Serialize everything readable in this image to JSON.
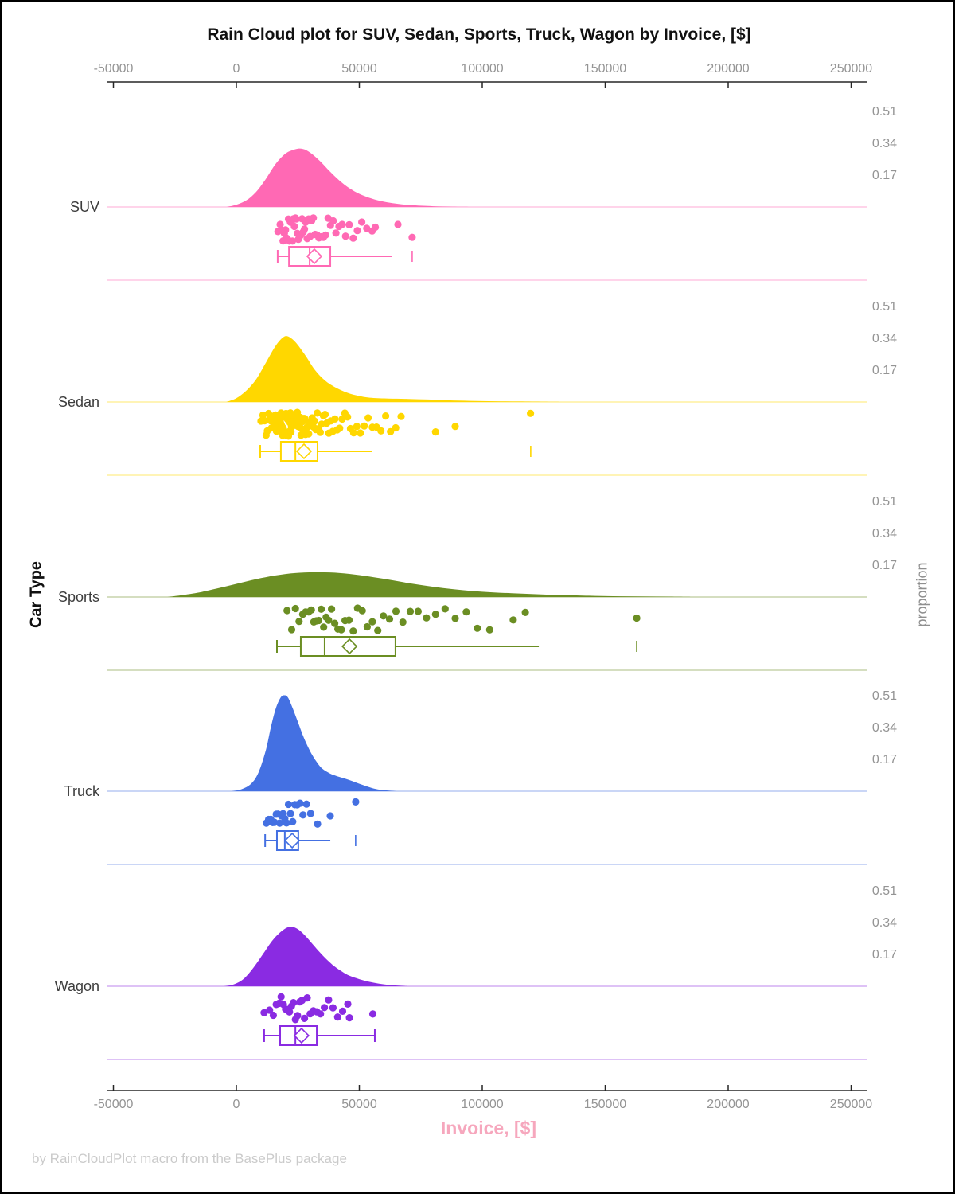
{
  "chart_data": {
    "type": "raincloud",
    "title": "Rain Cloud plot for SUV, Sedan, Sports, Truck, Wagon by Invoice, [$]",
    "xlabel": "Invoice, [$]",
    "ylabel_left": "Car Type",
    "ylabel_right": "proportion",
    "footer": "by RainCloudPlot macro from the BasePlus package",
    "x_axis": {
      "ticks": [
        -50000,
        0,
        50000,
        100000,
        150000,
        200000,
        250000
      ]
    },
    "proportion_ticks": [
      0.51,
      0.34,
      0.17
    ],
    "legend_position": "none",
    "grid": false,
    "groups": [
      {
        "name": "SUV",
        "color": "#FF69B4",
        "density": [
          [
            -4000,
            0
          ],
          [
            0,
            0.012
          ],
          [
            4000,
            0.035
          ],
          [
            8000,
            0.08
          ],
          [
            12000,
            0.15
          ],
          [
            16000,
            0.23
          ],
          [
            20000,
            0.285
          ],
          [
            24000,
            0.308
          ],
          [
            27000,
            0.31
          ],
          [
            30000,
            0.29
          ],
          [
            34000,
            0.245
          ],
          [
            38000,
            0.19
          ],
          [
            42000,
            0.14
          ],
          [
            46000,
            0.1
          ],
          [
            50000,
            0.07
          ],
          [
            55000,
            0.045
          ],
          [
            60000,
            0.028
          ],
          [
            66000,
            0.016
          ],
          [
            72000,
            0.009
          ],
          [
            80000,
            0.004
          ],
          [
            88000,
            0.001
          ],
          [
            95000,
            0
          ]
        ],
        "points": [
          16900,
          17800,
          18400,
          19000,
          19500,
          20000,
          20400,
          20800,
          21200,
          21600,
          22000,
          22400,
          22800,
          23200,
          23600,
          24000,
          24400,
          24800,
          25200,
          25700,
          26200,
          26700,
          27200,
          27700,
          28200,
          28800,
          29400,
          30000,
          30600,
          31300,
          32000,
          32800,
          33600,
          34500,
          35400,
          36300,
          37300,
          38300,
          39400,
          40500,
          41700,
          43000,
          44400,
          45900,
          47500,
          49200,
          51000,
          53000,
          55200,
          56500,
          65700,
          71500
        ],
        "box": {
          "whisker_low": 16800,
          "q1": 21400,
          "median": 29800,
          "mean": 31700,
          "q3": 38200,
          "whisker_high": 63100,
          "far": 71500,
          "right_cap": false
        }
      },
      {
        "name": "Sedan",
        "color": "#FFD700",
        "density": [
          [
            -4000,
            0
          ],
          [
            0,
            0.02
          ],
          [
            4000,
            0.06
          ],
          [
            8000,
            0.12
          ],
          [
            12000,
            0.21
          ],
          [
            16000,
            0.3
          ],
          [
            19000,
            0.345
          ],
          [
            21000,
            0.35
          ],
          [
            24000,
            0.32
          ],
          [
            28000,
            0.25
          ],
          [
            32000,
            0.17
          ],
          [
            36000,
            0.115
          ],
          [
            40000,
            0.08
          ],
          [
            45000,
            0.05
          ],
          [
            50000,
            0.032
          ],
          [
            55000,
            0.022
          ],
          [
            62000,
            0.018
          ],
          [
            70000,
            0.016
          ],
          [
            78000,
            0.013
          ],
          [
            86000,
            0.009
          ],
          [
            95000,
            0.006
          ],
          [
            105000,
            0.004
          ],
          [
            115000,
            0.0025
          ],
          [
            125000,
            0.001
          ],
          [
            132000,
            0
          ]
        ],
        "points": [
          10000,
          10800,
          11500,
          12100,
          12600,
          13100,
          13500,
          13900,
          14300,
          14700,
          15100,
          15400,
          15700,
          16000,
          16300,
          16600,
          16900,
          17200,
          17500,
          17800,
          18000,
          18200,
          18400,
          18600,
          18800,
          19000,
          19200,
          19400,
          19600,
          19800,
          20000,
          20200,
          20400,
          20600,
          20800,
          21000,
          21200,
          21400,
          21600,
          21800,
          22000,
          22200,
          22400,
          22600,
          22800,
          23000,
          23300,
          23600,
          23900,
          24200,
          24500,
          24800,
          25100,
          25400,
          25700,
          26000,
          26300,
          26600,
          27000,
          27400,
          27800,
          28200,
          28600,
          29000,
          29400,
          29800,
          30300,
          30800,
          31300,
          31800,
          32300,
          32900,
          33500,
          34100,
          34700,
          35400,
          36100,
          36800,
          37600,
          38400,
          39200,
          40100,
          41000,
          42000,
          43000,
          44100,
          45200,
          46400,
          47700,
          49000,
          50400,
          52000,
          53600,
          55300,
          57000,
          58800,
          60700,
          62700,
          64800,
          67000,
          81000,
          89000,
          119600
        ],
        "box": {
          "whisker_low": 9700,
          "q1": 18100,
          "median": 24000,
          "mean": 27500,
          "q3": 33000,
          "whisker_high": 55300,
          "far": 119700,
          "right_cap": false
        }
      },
      {
        "name": "Sports",
        "color": "#6B8E23",
        "density": [
          [
            -28000,
            0
          ],
          [
            -22000,
            0.01
          ],
          [
            -16000,
            0.022
          ],
          [
            -8000,
            0.045
          ],
          [
            0,
            0.07
          ],
          [
            8000,
            0.095
          ],
          [
            16000,
            0.115
          ],
          [
            24000,
            0.128
          ],
          [
            32000,
            0.132
          ],
          [
            40000,
            0.13
          ],
          [
            48000,
            0.12
          ],
          [
            56000,
            0.105
          ],
          [
            64000,
            0.088
          ],
          [
            72000,
            0.07
          ],
          [
            80000,
            0.055
          ],
          [
            88000,
            0.042
          ],
          [
            96000,
            0.032
          ],
          [
            104000,
            0.025
          ],
          [
            112000,
            0.02
          ],
          [
            120000,
            0.016
          ],
          [
            128000,
            0.012
          ],
          [
            136000,
            0.009
          ],
          [
            146000,
            0.006
          ],
          [
            156000,
            0.004
          ],
          [
            166000,
            0.0025
          ],
          [
            176000,
            0.0015
          ],
          [
            186000,
            0
          ]
        ],
        "points": [
          20600,
          22500,
          24000,
          25500,
          27000,
          28200,
          29400,
          30500,
          31500,
          32500,
          33500,
          34500,
          35500,
          36500,
          37500,
          38700,
          40000,
          41300,
          42700,
          44200,
          45800,
          47500,
          49300,
          51200,
          53200,
          55300,
          57500,
          59800,
          62300,
          64900,
          67700,
          70700,
          73900,
          77300,
          81000,
          84900,
          89000,
          93500,
          98000,
          103000,
          112600,
          117500,
          162800
        ],
        "box": {
          "whisker_low": 16500,
          "q1": 26200,
          "median": 35900,
          "mean": 46000,
          "q3": 64700,
          "whisker_high": 123000,
          "far": 162800,
          "right_cap": false
        }
      },
      {
        "name": "Truck",
        "color": "#4470E2",
        "density": [
          [
            -2000,
            0
          ],
          [
            2000,
            0.01
          ],
          [
            6000,
            0.04
          ],
          [
            9000,
            0.1
          ],
          [
            12000,
            0.22
          ],
          [
            14000,
            0.34
          ],
          [
            16000,
            0.44
          ],
          [
            18000,
            0.5
          ],
          [
            19500,
            0.512
          ],
          [
            21000,
            0.5
          ],
          [
            23000,
            0.44
          ],
          [
            25000,
            0.37
          ],
          [
            27000,
            0.3
          ],
          [
            29000,
            0.24
          ],
          [
            31000,
            0.19
          ],
          [
            33000,
            0.15
          ],
          [
            35000,
            0.12
          ],
          [
            38000,
            0.095
          ],
          [
            41000,
            0.08
          ],
          [
            44000,
            0.068
          ],
          [
            47000,
            0.055
          ],
          [
            50000,
            0.04
          ],
          [
            53000,
            0.026
          ],
          [
            56000,
            0.014
          ],
          [
            59000,
            0.007
          ],
          [
            62000,
            0.003
          ],
          [
            65000,
            0
          ]
        ],
        "points": [
          12200,
          13100,
          14000,
          14800,
          15500,
          16200,
          16900,
          17600,
          18300,
          19000,
          19700,
          20400,
          21200,
          22000,
          22900,
          23800,
          24800,
          25900,
          27100,
          28500,
          30200,
          33000,
          38200,
          48500
        ],
        "box": {
          "whisker_low": 11700,
          "q1": 16500,
          "median": 19700,
          "mean": 22700,
          "q3": 25200,
          "whisker_high": 38200,
          "far": 48500,
          "right_cap": false
        }
      },
      {
        "name": "Wagon",
        "color": "#8A2BE2",
        "density": [
          [
            -5000,
            0
          ],
          [
            -1000,
            0.01
          ],
          [
            3000,
            0.04
          ],
          [
            7000,
            0.1
          ],
          [
            11000,
            0.175
          ],
          [
            15000,
            0.25
          ],
          [
            19000,
            0.3
          ],
          [
            22000,
            0.318
          ],
          [
            25000,
            0.305
          ],
          [
            28000,
            0.27
          ],
          [
            31000,
            0.225
          ],
          [
            34000,
            0.18
          ],
          [
            37000,
            0.14
          ],
          [
            40000,
            0.105
          ],
          [
            43000,
            0.078
          ],
          [
            46000,
            0.056
          ],
          [
            50000,
            0.038
          ],
          [
            54000,
            0.024
          ],
          [
            58000,
            0.014
          ],
          [
            62000,
            0.007
          ],
          [
            66000,
            0.003
          ],
          [
            70000,
            0
          ]
        ],
        "points": [
          11300,
          13500,
          15000,
          16200,
          17300,
          18200,
          19100,
          20000,
          20800,
          21600,
          22400,
          23200,
          24000,
          24900,
          25800,
          26700,
          27700,
          28800,
          30000,
          31300,
          32700,
          34200,
          35800,
          37500,
          39300,
          41200,
          43200,
          45300,
          46000,
          55500
        ],
        "box": {
          "whisker_low": 11300,
          "q1": 17800,
          "median": 24000,
          "mean": 26500,
          "q3": 32700,
          "whisker_high": 56300,
          "far": null,
          "right_cap": true
        }
      }
    ]
  }
}
